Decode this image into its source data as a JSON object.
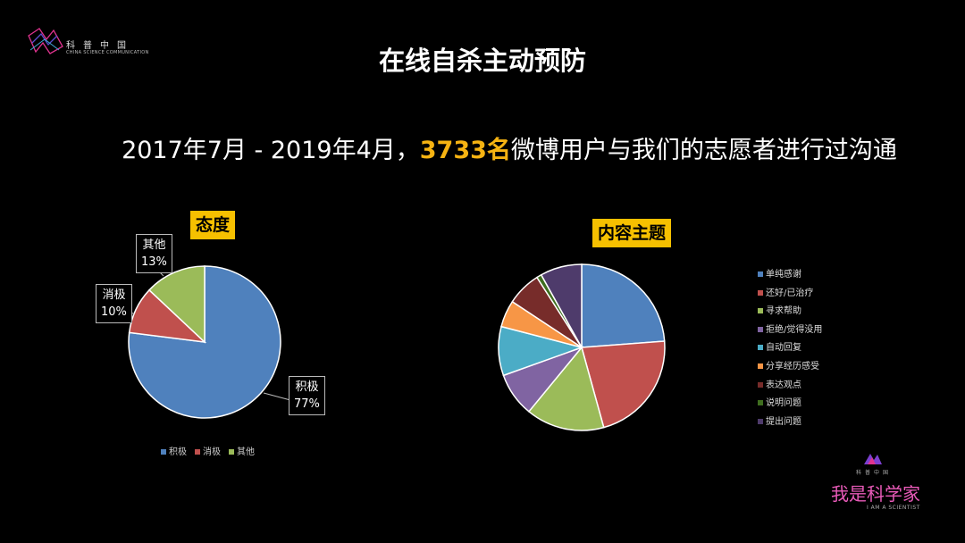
{
  "branding": {
    "top_logo_cn": "科普中国",
    "top_logo_en": "CHINA SCIENCE COMMUNICATION",
    "bottom_logo_small": "科普中国",
    "bottom_logo_cn": "我是科学家",
    "bottom_logo_en": "I AM A SCIENTIST"
  },
  "title": "在线自杀主动预防",
  "subtitle": {
    "prefix": "2017年7月 - 2019年4月，",
    "highlight": "3733名",
    "suffix": "微博用户与我们的志愿者进行过沟通"
  },
  "chart_data": [
    {
      "type": "pie",
      "title": "态度",
      "categories": [
        "积极",
        "消极",
        "其他"
      ],
      "values": [
        77,
        10,
        13
      ],
      "labels": [
        "积极\n77%",
        "消极\n10%",
        "其他\n13%"
      ],
      "colors": [
        "#4f81bd",
        "#c0504d",
        "#9bbb59"
      ],
      "legend_position": "bottom"
    },
    {
      "type": "pie",
      "title": "内容主题",
      "categories": [
        "单纯感谢",
        "还好/已治疗",
        "寻求帮助",
        "拒绝/觉得没用",
        "自动回复",
        "分享经历感受",
        "表达观点",
        "说明问题",
        "提出问题"
      ],
      "values": [
        25,
        23,
        16,
        9,
        10,
        5.5,
        7,
        1,
        8.5
      ],
      "colors": [
        "#4f81bd",
        "#c0504d",
        "#9bbb59",
        "#8064a2",
        "#4bacc6",
        "#f79646",
        "#772c2a",
        "#3f6e1f",
        "#4e3b6b"
      ],
      "legend_position": "right"
    }
  ]
}
